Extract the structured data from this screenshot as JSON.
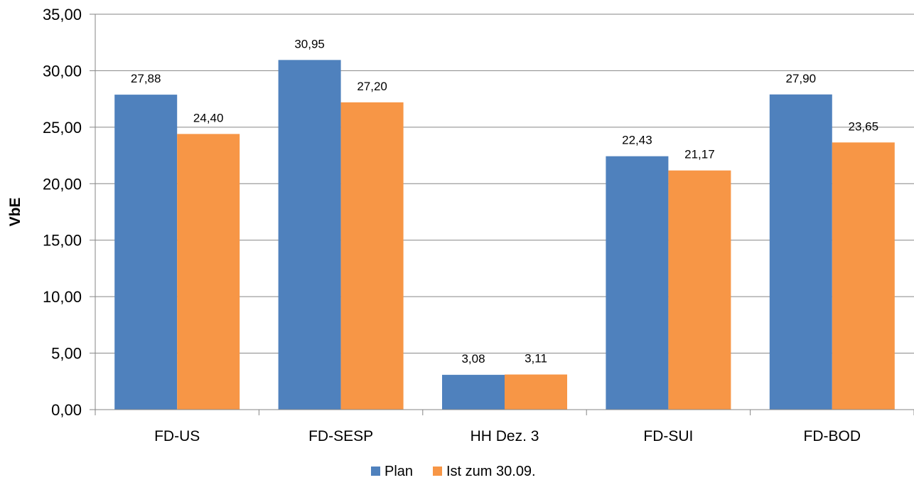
{
  "chart_data": {
    "type": "bar",
    "title": "",
    "xlabel": "",
    "ylabel": "VbE",
    "ylim": [
      0,
      35
    ],
    "y_ticks": [
      "0,00",
      "5,00",
      "10,00",
      "15,00",
      "20,00",
      "25,00",
      "30,00",
      "35,00"
    ],
    "grid": true,
    "legend_position": "bottom",
    "categories": [
      "FD-US",
      "FD-SESP",
      "HH Dez. 3",
      "FD-SUI",
      "FD-BOD"
    ],
    "series": [
      {
        "name": "Plan",
        "color": "#4F81BD",
        "values": [
          27.88,
          30.95,
          3.08,
          22.43,
          27.9
        ],
        "labels": [
          "27,88",
          "30,95",
          "3,08",
          "22,43",
          "27,90"
        ]
      },
      {
        "name": "Ist zum 30.09.",
        "color": "#F79646",
        "values": [
          24.4,
          27.2,
          3.11,
          21.17,
          23.65
        ],
        "labels": [
          "24,40",
          "27,20",
          "3,11",
          "21,17",
          "23,65"
        ]
      }
    ]
  }
}
